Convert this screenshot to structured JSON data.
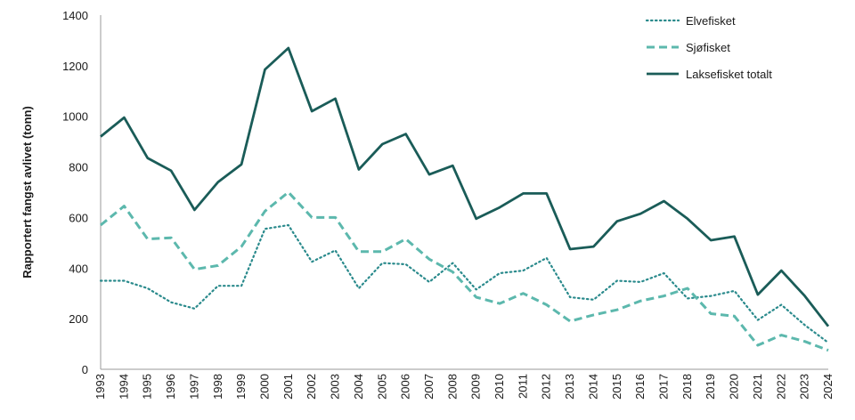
{
  "chart_data": {
    "type": "line",
    "title": "",
    "xlabel": "",
    "ylabel": "Rapportert fangst avlivet (tonn)",
    "ylim": [
      0,
      1400
    ],
    "yticks": [
      "0",
      "200",
      "400",
      "600",
      "800",
      "1000",
      "1200",
      "1400"
    ],
    "grid": false,
    "legend_position": "top-right",
    "categories": [
      "1993",
      "1994",
      "1995",
      "1996",
      "1997",
      "1998",
      "1999",
      "2000",
      "2001",
      "2002",
      "2003",
      "2004",
      "2005",
      "2006",
      "2007",
      "2008",
      "2009",
      "2010",
      "2011",
      "2012",
      "2013",
      "2014",
      "2015",
      "2016",
      "2017",
      "2018",
      "2019",
      "2020",
      "2021",
      "2022",
      "2023",
      "2024"
    ],
    "series": [
      {
        "name": "Elvefisket",
        "style": "dotted",
        "color": "#2a8a8c",
        "values": [
          350,
          350,
          320,
          265,
          240,
          330,
          330,
          555,
          570,
          425,
          470,
          320,
          420,
          415,
          345,
          420,
          315,
          380,
          390,
          440,
          285,
          275,
          350,
          345,
          380,
          280,
          290,
          310,
          195,
          255,
          175,
          105
        ]
      },
      {
        "name": "Sjøfisket",
        "style": "dashed",
        "color": "#5cb8ad",
        "values": [
          570,
          645,
          515,
          520,
          395,
          410,
          485,
          625,
          700,
          600,
          600,
          465,
          465,
          515,
          435,
          385,
          285,
          260,
          300,
          255,
          190,
          215,
          235,
          270,
          290,
          320,
          220,
          210,
          95,
          135,
          110,
          75
        ]
      },
      {
        "name": "Laksefisket totalt",
        "style": "solid",
        "color": "#1a5c58",
        "values": [
          920,
          995,
          835,
          785,
          630,
          740,
          810,
          1185,
          1270,
          1020,
          1070,
          790,
          890,
          930,
          770,
          805,
          595,
          640,
          695,
          695,
          475,
          485,
          585,
          615,
          665,
          595,
          510,
          525,
          295,
          390,
          290,
          170
        ]
      }
    ]
  }
}
